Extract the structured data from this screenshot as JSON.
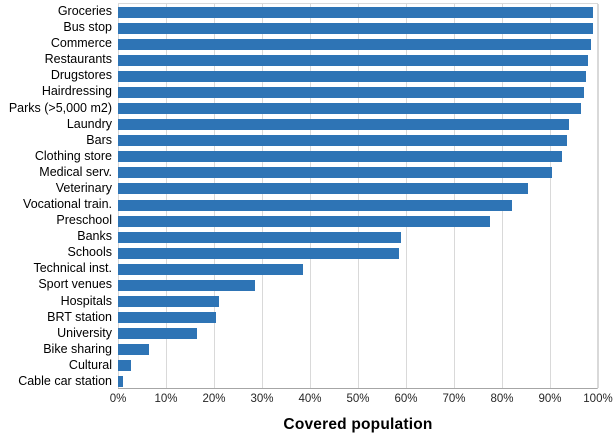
{
  "chart_data": {
    "type": "bar",
    "orientation": "horizontal",
    "title": "",
    "xlabel": "Covered population",
    "ylabel": "",
    "xlim": [
      0,
      100
    ],
    "x_tick_labels": [
      "0%",
      "10%",
      "20%",
      "30%",
      "40%",
      "50%",
      "60%",
      "70%",
      "80%",
      "90%",
      "100%"
    ],
    "x_tick_values": [
      0,
      10,
      20,
      30,
      40,
      50,
      60,
      70,
      80,
      90,
      100
    ],
    "grid": "vertical-gridlines-on",
    "legend": "none",
    "unit": "%",
    "categories": [
      "Groceries",
      "Bus stop",
      "Commerce",
      "Restaurants",
      "Drugstores",
      "Hairdressing",
      "Parks (>5,000 m2)",
      "Laundry",
      "Bars",
      "Clothing store",
      "Medical serv.",
      "Veterinary",
      "Vocational train.",
      "Preschool",
      "Banks",
      "Schools",
      "Technical inst.",
      "Sport venues",
      "Hospitals",
      "BRT station",
      "University",
      "Bike sharing",
      "Cultural",
      "Cable car station"
    ],
    "values": [
      99,
      99,
      98.5,
      98,
      97.5,
      97,
      96.5,
      94,
      93.5,
      92.5,
      90.5,
      85.5,
      82,
      77.5,
      59,
      58.5,
      38.5,
      28.5,
      21,
      20.5,
      16.5,
      6.5,
      2.7,
      1
    ],
    "colors": {
      "bar": "#2E74B5",
      "gridline": "#D9D9D9",
      "axis_line": "#A6A6A6",
      "tick_text": "#262626",
      "label_text": "#000000",
      "background": "#FFFFFF"
    }
  }
}
